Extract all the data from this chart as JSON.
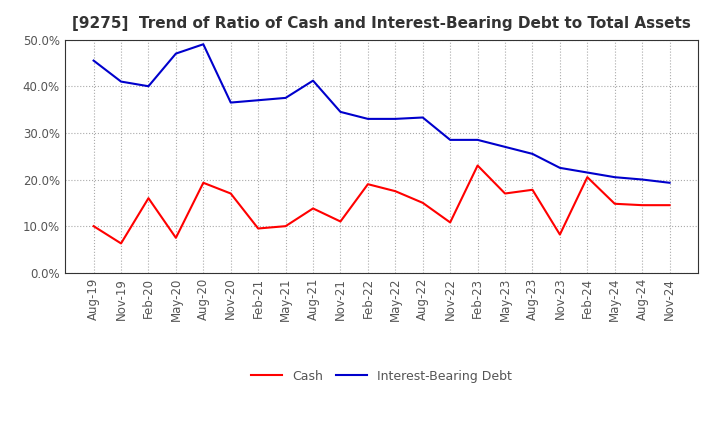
{
  "title": "[9275]  Trend of Ratio of Cash and Interest-Bearing Debt to Total Assets",
  "x_labels": [
    "Aug-19",
    "Nov-19",
    "Feb-20",
    "May-20",
    "Aug-20",
    "Nov-20",
    "Feb-21",
    "May-21",
    "Aug-21",
    "Nov-21",
    "Feb-22",
    "May-22",
    "Aug-22",
    "Nov-22",
    "Feb-23",
    "May-23",
    "Aug-23",
    "Nov-23",
    "Feb-24",
    "May-24",
    "Aug-24",
    "Nov-24"
  ],
  "cash": [
    0.1,
    0.063,
    0.16,
    0.075,
    0.193,
    0.17,
    0.095,
    0.1,
    0.138,
    0.11,
    0.19,
    0.175,
    0.15,
    0.108,
    0.23,
    0.17,
    0.178,
    0.082,
    0.205,
    0.148,
    0.145,
    0.145
  ],
  "interest_bearing_debt": [
    0.455,
    0.41,
    0.4,
    0.47,
    0.49,
    0.365,
    0.37,
    0.375,
    0.412,
    0.345,
    0.33,
    0.33,
    0.333,
    0.285,
    0.285,
    0.27,
    0.255,
    0.225,
    0.215,
    0.205,
    0.2,
    0.193
  ],
  "cash_color": "#ff0000",
  "debt_color": "#0000cc",
  "ylim": [
    0.0,
    0.5
  ],
  "yticks": [
    0.0,
    0.1,
    0.2,
    0.3,
    0.4,
    0.5
  ],
  "background_color": "#ffffff",
  "grid_color": "#aaaaaa",
  "title_fontsize": 11,
  "title_color": "#333333",
  "tick_color": "#555555",
  "tick_fontsize": 8.5,
  "legend_fontsize": 9
}
